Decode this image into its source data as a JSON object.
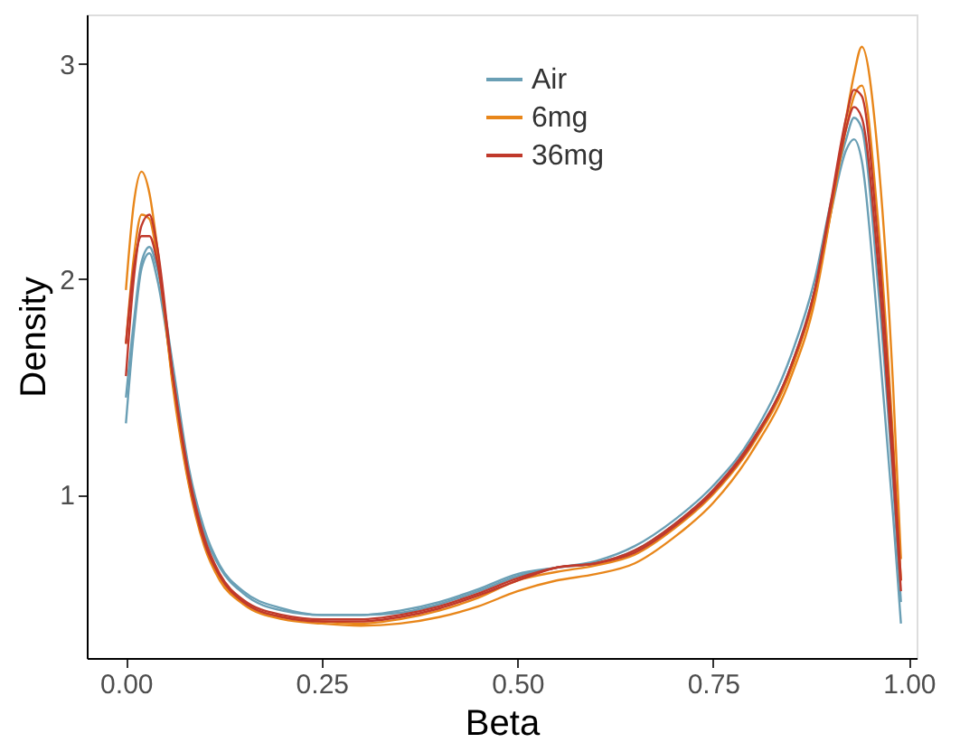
{
  "chart_data": {
    "type": "line",
    "xlabel": "Beta",
    "ylabel": "Density",
    "x": [
      0,
      0.01,
      0.02,
      0.03,
      0.04,
      0.06,
      0.08,
      0.1,
      0.12,
      0.15,
      0.2,
      0.25,
      0.3,
      0.35,
      0.4,
      0.45,
      0.5,
      0.55,
      0.6,
      0.65,
      0.7,
      0.75,
      0.8,
      0.85,
      0.88,
      0.9,
      0.92,
      0.93,
      0.94,
      0.96,
      0.98,
      0.99
    ],
    "series": [
      {
        "name": "Air",
        "color": "#6a9fb5",
        "values": [
          1.33,
          1.75,
          2.05,
          2.12,
          2.0,
          1.55,
          1.1,
          0.82,
          0.66,
          0.54,
          0.46,
          0.44,
          0.44,
          0.45,
          0.49,
          0.55,
          0.62,
          0.66,
          0.68,
          0.74,
          0.86,
          1.02,
          1.25,
          1.6,
          1.95,
          2.3,
          2.6,
          2.65,
          2.55,
          1.8,
          0.9,
          0.4
        ]
      },
      {
        "color": "#6a9fb5",
        "values": [
          1.45,
          1.8,
          2.08,
          2.15,
          2.05,
          1.6,
          1.13,
          0.84,
          0.67,
          0.55,
          0.47,
          0.44,
          0.44,
          0.46,
          0.5,
          0.56,
          0.63,
          0.66,
          0.69,
          0.76,
          0.88,
          1.04,
          1.27,
          1.65,
          2.0,
          2.35,
          2.65,
          2.75,
          2.7,
          2.0,
          1.05,
          0.5
        ]
      },
      {
        "name": "6mg",
        "color": "#e8861a",
        "values": [
          1.95,
          2.35,
          2.5,
          2.4,
          2.15,
          1.5,
          1.05,
          0.76,
          0.6,
          0.49,
          0.42,
          0.4,
          0.39,
          0.4,
          0.43,
          0.48,
          0.55,
          0.6,
          0.63,
          0.68,
          0.8,
          0.96,
          1.2,
          1.55,
          1.9,
          2.3,
          2.75,
          2.95,
          3.08,
          2.6,
          1.5,
          0.7
        ]
      },
      {
        "color": "#e8861a",
        "values": [
          1.7,
          2.1,
          2.3,
          2.28,
          2.1,
          1.52,
          1.06,
          0.78,
          0.61,
          0.5,
          0.43,
          0.41,
          0.4,
          0.42,
          0.46,
          0.52,
          0.6,
          0.64,
          0.67,
          0.72,
          0.84,
          1.0,
          1.23,
          1.58,
          1.93,
          2.3,
          2.7,
          2.85,
          2.9,
          2.3,
          1.25,
          0.6
        ]
      },
      {
        "name": "36mg",
        "color": "#c0392b",
        "values": [
          1.55,
          2.0,
          2.25,
          2.3,
          2.15,
          1.55,
          1.08,
          0.78,
          0.62,
          0.5,
          0.43,
          0.41,
          0.41,
          0.43,
          0.47,
          0.53,
          0.6,
          0.66,
          0.68,
          0.73,
          0.85,
          1.01,
          1.24,
          1.6,
          1.95,
          2.35,
          2.75,
          2.88,
          2.85,
          2.2,
          1.2,
          0.6
        ]
      },
      {
        "color": "#c0392b",
        "values": [
          1.7,
          2.05,
          2.2,
          2.2,
          2.08,
          1.55,
          1.1,
          0.8,
          0.63,
          0.51,
          0.44,
          0.42,
          0.42,
          0.44,
          0.48,
          0.54,
          0.61,
          0.66,
          0.68,
          0.74,
          0.86,
          1.02,
          1.25,
          1.6,
          1.95,
          2.33,
          2.7,
          2.8,
          2.75,
          2.1,
          1.1,
          0.55
        ]
      }
    ],
    "xlim": [
      -0.05,
      1.01
    ],
    "ylim": [
      0.24,
      3.23
    ],
    "xticks": [
      {
        "value": 0,
        "label": "0.00"
      },
      {
        "value": 0.25,
        "label": "0.25"
      },
      {
        "value": 0.5,
        "label": "0.50"
      },
      {
        "value": 0.75,
        "label": "0.75"
      },
      {
        "value": 1,
        "label": "1.00"
      }
    ],
    "yticks": [
      1,
      2,
      3
    ],
    "grid": false,
    "legend": "top",
    "marker": "none",
    "line_style": "solid"
  }
}
